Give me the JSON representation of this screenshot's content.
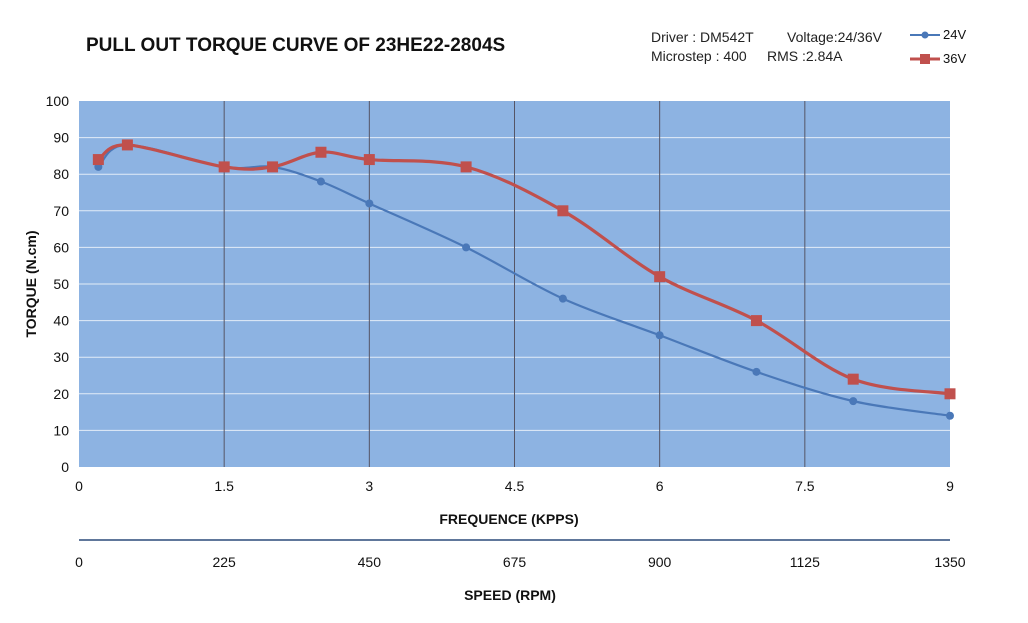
{
  "chart_data": {
    "type": "line",
    "title": "PULL OUT TORQUE CURVE OF 23HE22-2804S",
    "info": {
      "driver": "Driver : DM542T",
      "voltage": "Voltage:24/36V",
      "microstep": "Microstep : 400",
      "rms": "RMS :2.84A"
    },
    "xlabel": "FREQUENCE (KPPS)",
    "ylabel": "TORQUE (N.cm)",
    "secondary_xlabel": "SPEED (RPM)",
    "xlim": [
      0,
      9
    ],
    "ylim": [
      0,
      100
    ],
    "x_ticks": [
      0,
      1.5,
      3,
      4.5,
      6,
      7.5,
      9
    ],
    "x_tick_labels": [
      "0",
      "1.5",
      "3",
      "4.5",
      "6",
      "7.5",
      "9"
    ],
    "y_ticks": [
      0,
      10,
      20,
      30,
      40,
      50,
      60,
      70,
      80,
      90,
      100
    ],
    "y_tick_labels": [
      "0",
      "10",
      "20",
      "30",
      "40",
      "50",
      "60",
      "70",
      "80",
      "90",
      "100"
    ],
    "secondary_x_ticks": [
      0,
      1.5,
      3,
      4.5,
      6,
      7.5,
      9
    ],
    "secondary_x_tick_labels": [
      "0",
      "225",
      "450",
      "675",
      "900",
      "1125",
      "1350"
    ],
    "series": [
      {
        "name": "24V",
        "color": "#4a78b8",
        "marker": "circle",
        "x": [
          0.2,
          0.5,
          1.5,
          2.0,
          2.5,
          3.0,
          4.0,
          5.0,
          6.0,
          7.0,
          8.0,
          9.0
        ],
        "values": [
          82,
          88,
          82,
          82,
          78,
          72,
          60,
          46,
          36,
          26,
          18,
          14
        ]
      },
      {
        "name": "36V",
        "color": "#c0504d",
        "marker": "square",
        "x": [
          0.2,
          0.5,
          1.5,
          2.0,
          2.5,
          3.0,
          4.0,
          5.0,
          6.0,
          7.0,
          8.0,
          9.0
        ],
        "values": [
          84,
          88,
          82,
          82,
          86,
          84,
          82,
          70,
          52,
          40,
          24,
          20
        ]
      }
    ],
    "plot_background": "#8db3e2",
    "vertical_grid_color": "#555566",
    "horizontal_grid_color": "#ffffff"
  }
}
